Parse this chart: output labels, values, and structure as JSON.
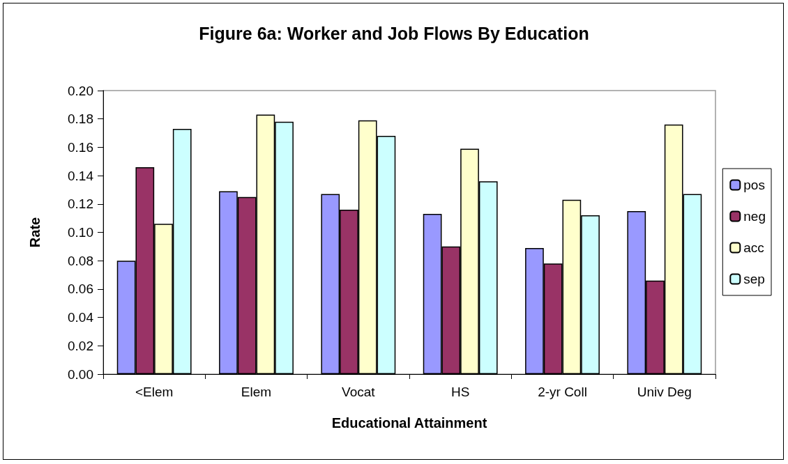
{
  "chart_data": {
    "type": "bar",
    "title": "Figure 6a: Worker and Job Flows By Education",
    "xlabel": "Educational Attainment",
    "ylabel": "Rate",
    "categories": [
      "<Elem",
      "Elem",
      "Vocat",
      "HS",
      "2-yr Coll",
      "Univ Deg"
    ],
    "series": [
      {
        "name": "pos",
        "color": "#9999ff",
        "values": [
          0.08,
          0.129,
          0.127,
          0.113,
          0.089,
          0.115
        ]
      },
      {
        "name": "neg",
        "color": "#993366",
        "values": [
          0.146,
          0.125,
          0.116,
          0.09,
          0.078,
          0.066
        ]
      },
      {
        "name": "acc",
        "color": "#ffffcc",
        "values": [
          0.106,
          0.183,
          0.179,
          0.159,
          0.123,
          0.176
        ]
      },
      {
        "name": "sep",
        "color": "#ccffff",
        "values": [
          0.173,
          0.178,
          0.168,
          0.136,
          0.112,
          0.127
        ]
      }
    ],
    "ylim": [
      0,
      0.2
    ],
    "yticks": [
      {
        "value": 0,
        "label": "0.00"
      },
      0.02,
      0.04,
      0.06,
      0.08,
      {
        "value": 0.1,
        "label": "0.10"
      },
      0.12,
      0.14,
      0.16,
      0.18,
      {
        "value": 0.2,
        "label": "0.20"
      }
    ],
    "grid": false,
    "legend": "right"
  }
}
